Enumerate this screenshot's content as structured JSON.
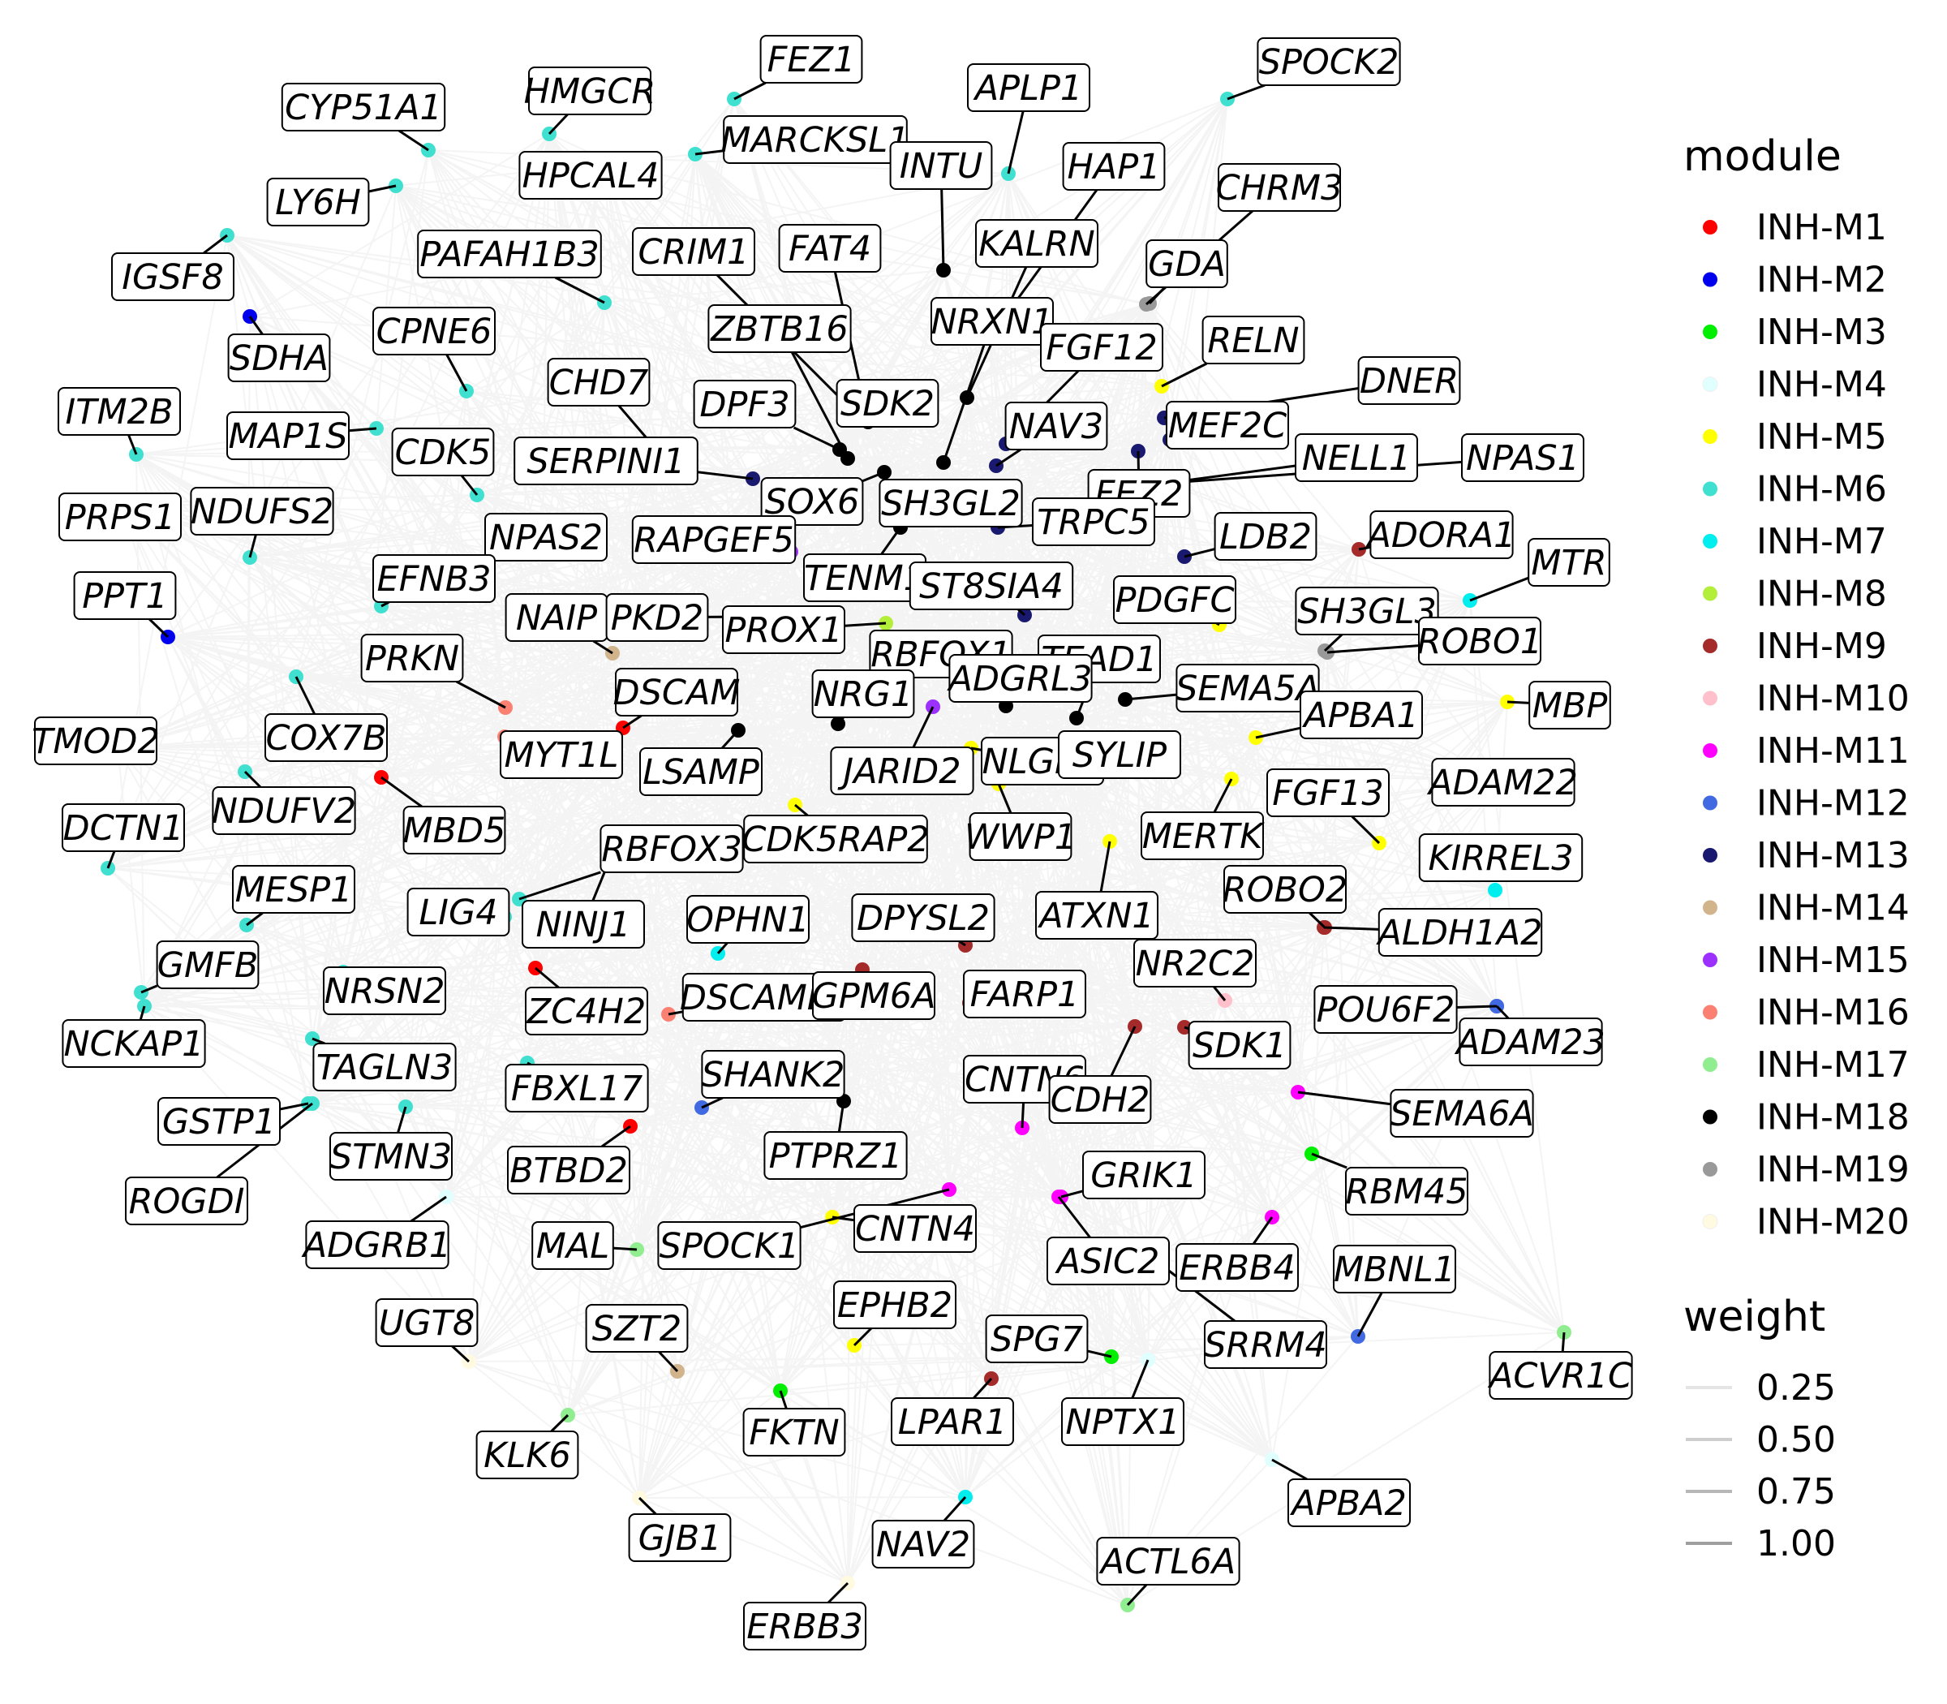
{
  "legend": {
    "module_title": "module",
    "weight_title": "weight",
    "modules": [
      {
        "name": "INH-M1",
        "color": "#ff0000"
      },
      {
        "name": "INH-M2",
        "color": "#0000ee"
      },
      {
        "name": "INH-M3",
        "color": "#00ee00"
      },
      {
        "name": "INH-M4",
        "color": "#e0ffff"
      },
      {
        "name": "INH-M5",
        "color": "#ffff00"
      },
      {
        "name": "INH-M6",
        "color": "#40e0d0"
      },
      {
        "name": "INH-M7",
        "color": "#00eeee"
      },
      {
        "name": "INH-M8",
        "color": "#b3ee3a"
      },
      {
        "name": "INH-M9",
        "color": "#a52a2a"
      },
      {
        "name": "INH-M10",
        "color": "#ffc0cb"
      },
      {
        "name": "INH-M11",
        "color": "#ff00ff"
      },
      {
        "name": "INH-M12",
        "color": "#4169e1"
      },
      {
        "name": "INH-M13",
        "color": "#191970"
      },
      {
        "name": "INH-M14",
        "color": "#d2b48c"
      },
      {
        "name": "INH-M15",
        "color": "#9b30ff"
      },
      {
        "name": "INH-M16",
        "color": "#fa8072"
      },
      {
        "name": "INH-M17",
        "color": "#90ee90"
      },
      {
        "name": "INH-M18",
        "color": "#000000"
      },
      {
        "name": "INH-M19",
        "color": "#999999"
      },
      {
        "name": "INH-M20",
        "color": "#fffae0"
      }
    ],
    "weights": [
      "0.25",
      "0.50",
      "0.75",
      "1.00"
    ]
  },
  "nodes": [
    {
      "gene": "FEZ1",
      "module": "INH-M6"
    },
    {
      "gene": "SPOCK2",
      "module": "INH-M6"
    },
    {
      "gene": "HMGCR",
      "module": "INH-M6"
    },
    {
      "gene": "APLP1",
      "module": "INH-M6"
    },
    {
      "gene": "CYP51A1",
      "module": "INH-M6"
    },
    {
      "gene": "MARCKSL1",
      "module": "INH-M6"
    },
    {
      "gene": "INTU",
      "module": "INH-M18"
    },
    {
      "gene": "HAP1",
      "module": "INH-M13"
    },
    {
      "gene": "HPCAL4",
      "module": "INH-M6"
    },
    {
      "gene": "CHRM3",
      "module": "INH-M19"
    },
    {
      "gene": "LY6H",
      "module": "INH-M6"
    },
    {
      "gene": "KALRN",
      "module": "INH-M18"
    },
    {
      "gene": "CRIM1",
      "module": "INH-M18"
    },
    {
      "gene": "FAT4",
      "module": "INH-M18"
    },
    {
      "gene": "PAFAH1B3",
      "module": "INH-M6"
    },
    {
      "gene": "GDA",
      "module": "INH-M19"
    },
    {
      "gene": "IGSF8",
      "module": "INH-M6"
    },
    {
      "gene": "NRXN1",
      "module": "INH-M18"
    },
    {
      "gene": "ZBTB16",
      "module": "INH-M18"
    },
    {
      "gene": "SDHA",
      "module": "INH-M2"
    },
    {
      "gene": "CPNE6",
      "module": "INH-M6"
    },
    {
      "gene": "FGF12",
      "module": "INH-M13"
    },
    {
      "gene": "RELN",
      "module": "INH-M5"
    },
    {
      "gene": "DNER",
      "module": "INH-M13"
    },
    {
      "gene": "CHD7",
      "module": "INH-M18"
    },
    {
      "gene": "ITM2B",
      "module": "INH-M6"
    },
    {
      "gene": "SDK2",
      "module": "INH-M18"
    },
    {
      "gene": "DPF3",
      "module": "INH-M18"
    },
    {
      "gene": "MEF2C",
      "module": "INH-M13"
    },
    {
      "gene": "MAP1S",
      "module": "INH-M6"
    },
    {
      "gene": "NAV3",
      "module": "INH-M13"
    },
    {
      "gene": "NPAS1",
      "module": "INH-M13"
    },
    {
      "gene": "NELL1",
      "module": "INH-M13"
    },
    {
      "gene": "CDK5",
      "module": "INH-M6"
    },
    {
      "gene": "SERPINI1",
      "module": "INH-M13"
    },
    {
      "gene": "FEZ2",
      "module": "INH-M13"
    },
    {
      "gene": "PRPS1",
      "module": "INH-M6"
    },
    {
      "gene": "NDUFS2",
      "module": "INH-M6"
    },
    {
      "gene": "SOX6",
      "module": "INH-M18"
    },
    {
      "gene": "SH3GL2",
      "module": "INH-M13"
    },
    {
      "gene": "TRPC5",
      "module": "INH-M13"
    },
    {
      "gene": "LDB2",
      "module": "INH-M13"
    },
    {
      "gene": "ADORA1",
      "module": "INH-M9"
    },
    {
      "gene": "NPAS2",
      "module": "INH-M2"
    },
    {
      "gene": "RAPGEF5",
      "module": "INH-M15"
    },
    {
      "gene": "MTR",
      "module": "INH-M7"
    },
    {
      "gene": "EFNB3",
      "module": "INH-M6"
    },
    {
      "gene": "TENM1",
      "module": "INH-M18"
    },
    {
      "gene": "ST8SIA4",
      "module": "INH-M13"
    },
    {
      "gene": "PPT1",
      "module": "INH-M2"
    },
    {
      "gene": "NAIP",
      "module": "INH-M14"
    },
    {
      "gene": "PKD2",
      "module": "INH-M15"
    },
    {
      "gene": "PDGFC",
      "module": "INH-M5"
    },
    {
      "gene": "SH3GL3",
      "module": "INH-M19"
    },
    {
      "gene": "PROX1",
      "module": "INH-M8"
    },
    {
      "gene": "ROBO1",
      "module": "INH-M19"
    },
    {
      "gene": "RBFOX1",
      "module": "INH-M18"
    },
    {
      "gene": "TEAD1",
      "module": "INH-M18"
    },
    {
      "gene": "PRKN",
      "module": "INH-M16"
    },
    {
      "gene": "ADGRL3",
      "module": "INH-M18"
    },
    {
      "gene": "DSCAM",
      "module": "INH-M1"
    },
    {
      "gene": "NRG1",
      "module": "INH-M18"
    },
    {
      "gene": "SEMA5A",
      "module": "INH-M18"
    },
    {
      "gene": "MBP",
      "module": "INH-M5"
    },
    {
      "gene": "APBA1",
      "module": "INH-M5"
    },
    {
      "gene": "TMOD2",
      "module": "INH-M6"
    },
    {
      "gene": "COX7B",
      "module": "INH-M6"
    },
    {
      "gene": "MYT1L",
      "module": "INH-M16"
    },
    {
      "gene": "NLGN1",
      "module": "INH-M5"
    },
    {
      "gene": "SYLIP",
      "module": "INH-M5"
    },
    {
      "gene": "LSAMP",
      "module": "INH-M18"
    },
    {
      "gene": "JARID2",
      "module": "INH-M15"
    },
    {
      "gene": "ADAM22",
      "module": "INH-M5"
    },
    {
      "gene": "FGF13",
      "module": "INH-M5"
    },
    {
      "gene": "NDUFV2",
      "module": "INH-M6"
    },
    {
      "gene": "DCTN1",
      "module": "INH-M6"
    },
    {
      "gene": "MBD5",
      "module": "INH-M1"
    },
    {
      "gene": "RBFOX3",
      "module": "INH-M6"
    },
    {
      "gene": "CDK5RAP2",
      "module": "INH-M5"
    },
    {
      "gene": "WWP1",
      "module": "INH-M5"
    },
    {
      "gene": "MERTK",
      "module": "INH-M5"
    },
    {
      "gene": "KIRREL3",
      "module": "INH-M7"
    },
    {
      "gene": "MESP1",
      "module": "INH-M6"
    },
    {
      "gene": "ROBO2",
      "module": "INH-M9"
    },
    {
      "gene": "LIG4",
      "module": "INH-M6"
    },
    {
      "gene": "NINJ1",
      "module": "INH-M6"
    },
    {
      "gene": "OPHN1",
      "module": "INH-M7"
    },
    {
      "gene": "DPYSL2",
      "module": "INH-M9"
    },
    {
      "gene": "ATXN1",
      "module": "INH-M5"
    },
    {
      "gene": "ALDH1A2",
      "module": "INH-M9"
    },
    {
      "gene": "GMFB",
      "module": "INH-M6"
    },
    {
      "gene": "NR2C2",
      "module": "INH-M10"
    },
    {
      "gene": "NRSN2",
      "module": "INH-M6"
    },
    {
      "gene": "DSCAML1",
      "module": "INH-M16"
    },
    {
      "gene": "GPM6A",
      "module": "INH-M9"
    },
    {
      "gene": "FARP1",
      "module": "INH-M9"
    },
    {
      "gene": "POU6F2",
      "module": "INH-M12"
    },
    {
      "gene": "ZC4H2",
      "module": "INH-M1"
    },
    {
      "gene": "SDK1",
      "module": "INH-M9"
    },
    {
      "gene": "ADAM23",
      "module": "INH-M12"
    },
    {
      "gene": "NCKAP1",
      "module": "INH-M6"
    },
    {
      "gene": "TAGLN3",
      "module": "INH-M6"
    },
    {
      "gene": "SHANK2",
      "module": "INH-M12"
    },
    {
      "gene": "CNTN6",
      "module": "INH-M11"
    },
    {
      "gene": "FBXL17",
      "module": "INH-M6"
    },
    {
      "gene": "CDH2",
      "module": "INH-M9"
    },
    {
      "gene": "SEMA6A",
      "module": "INH-M11"
    },
    {
      "gene": "GSTP1",
      "module": "INH-M6"
    },
    {
      "gene": "STMN3",
      "module": "INH-M6"
    },
    {
      "gene": "PTPRZ1",
      "module": "INH-M18"
    },
    {
      "gene": "GRIK1",
      "module": "INH-M11"
    },
    {
      "gene": "BTBD2",
      "module": "INH-M1"
    },
    {
      "gene": "RBM45",
      "module": "INH-M3"
    },
    {
      "gene": "ROGDI",
      "module": "INH-M6"
    },
    {
      "gene": "CNTN4",
      "module": "INH-M5"
    },
    {
      "gene": "ADGRB1",
      "module": "INH-M4"
    },
    {
      "gene": "MAL",
      "module": "INH-M17"
    },
    {
      "gene": "SPOCK1",
      "module": "INH-M11"
    },
    {
      "gene": "ASIC2",
      "module": "INH-M11"
    },
    {
      "gene": "ERBB4",
      "module": "INH-M11"
    },
    {
      "gene": "MBNL1",
      "module": "INH-M12"
    },
    {
      "gene": "EPHB2",
      "module": "INH-M5"
    },
    {
      "gene": "UGT8",
      "module": "INH-M20"
    },
    {
      "gene": "SZT2",
      "module": "INH-M14"
    },
    {
      "gene": "SPG7",
      "module": "INH-M3"
    },
    {
      "gene": "SRRM4",
      "module": "INH-M11"
    },
    {
      "gene": "ACVR1C",
      "module": "INH-M17"
    },
    {
      "gene": "NPTX1",
      "module": "INH-M4"
    },
    {
      "gene": "FKTN",
      "module": "INH-M3"
    },
    {
      "gene": "LPAR1",
      "module": "INH-M9"
    },
    {
      "gene": "KLK6",
      "module": "INH-M17"
    },
    {
      "gene": "APBA2",
      "module": "INH-M4"
    },
    {
      "gene": "GJB1",
      "module": "INH-M20"
    },
    {
      "gene": "NAV2",
      "module": "INH-M7"
    },
    {
      "gene": "ACTL6A",
      "module": "INH-M17"
    },
    {
      "gene": "ERBB3",
      "module": "INH-M20"
    }
  ]
}
